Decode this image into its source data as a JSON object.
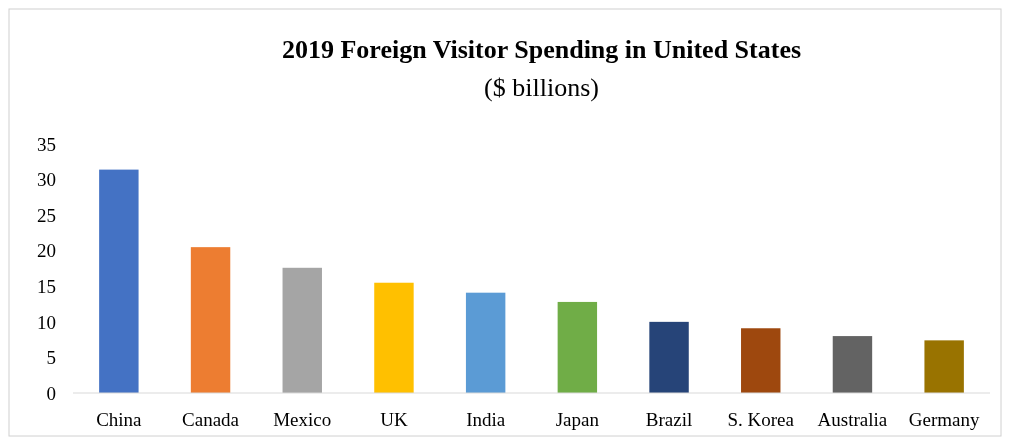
{
  "chart_data": {
    "type": "bar",
    "title": "2019 Foreign Visitor Spending in United States",
    "subtitle": "($ billions)",
    "categories": [
      "China",
      "Canada",
      "Mexico",
      "UK",
      "India",
      "Japan",
      "Brazil",
      "S. Korea",
      "Australia",
      "Germany"
    ],
    "values": [
      31.4,
      20.5,
      17.6,
      15.5,
      14.1,
      12.8,
      10.0,
      9.1,
      8.0,
      7.4
    ],
    "colors": [
      "#4472c4",
      "#ed7d31",
      "#a5a5a5",
      "#ffc000",
      "#5b9bd5",
      "#70ad47",
      "#264478",
      "#9e480e",
      "#636363",
      "#997300"
    ],
    "ylim": [
      0,
      35
    ],
    "yticks": [
      0,
      5,
      10,
      15,
      20,
      25,
      30,
      35
    ],
    "grid": false
  }
}
